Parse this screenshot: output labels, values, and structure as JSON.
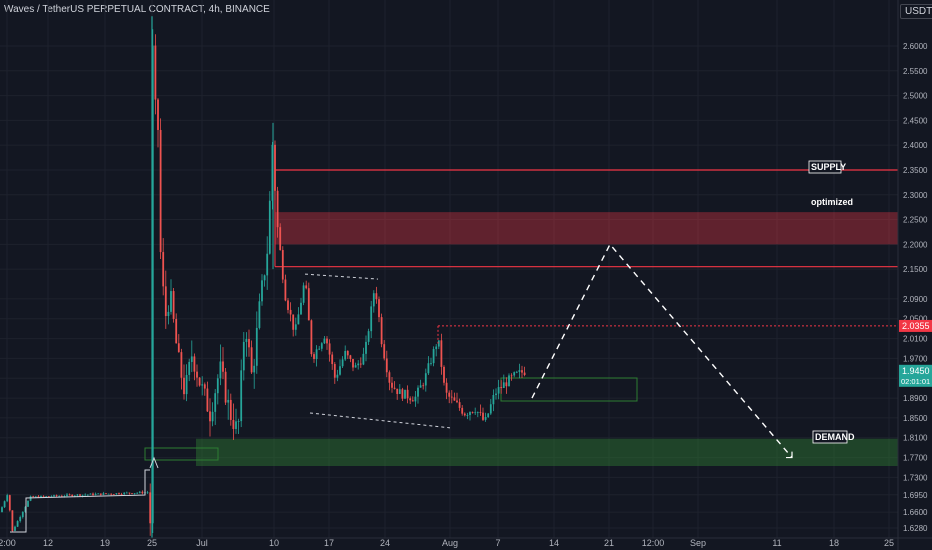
{
  "header": {
    "title": "Waves / TetherUS PERPETUAL CONTRACT, 4h, BINANCE",
    "currency": "USDT"
  },
  "colors": {
    "background": "#131722",
    "grid": "#1e222d",
    "up": "#26a69a",
    "down": "#ef5350",
    "supply": "#f23645",
    "demand": "#2e7d32",
    "text": "#b2b5be"
  },
  "chart_data": {
    "type": "candlestick",
    "symbol": "WAVESUSDT",
    "timeframe": "4h",
    "y_ticks": [
      "2.6000",
      "2.5500",
      "2.5000",
      "2.4500",
      "2.4000",
      "2.3500",
      "2.3000",
      "2.2500",
      "2.2000",
      "2.1500",
      "2.0900",
      "2.0500",
      "2.0100",
      "1.9700",
      "1.9300",
      "1.8900",
      "1.8500",
      "1.8100",
      "1.7700",
      "1.7300",
      "1.6950",
      "1.6600",
      "1.6280"
    ],
    "x_ticks": [
      "2:00",
      "12",
      "19",
      "25",
      "Jul",
      "10",
      "17",
      "24",
      "Aug",
      "7",
      "14",
      "21",
      "12:00",
      "Sep",
      "11",
      "18",
      "25"
    ],
    "ylim": [
      1.615,
      2.655
    ],
    "price_path": [
      [
        0,
        1.66
      ],
      [
        8,
        1.7
      ],
      [
        12,
        1.62
      ],
      [
        30,
        1.69
      ],
      [
        80,
        1.695
      ],
      [
        148,
        1.7
      ],
      [
        151,
        1.62
      ],
      [
        152,
        2.3
      ],
      [
        153,
        2.66
      ],
      [
        154,
        2.4
      ],
      [
        157,
        2.55
      ],
      [
        160,
        2.2
      ],
      [
        165,
        2.05
      ],
      [
        170,
        2.1
      ],
      [
        178,
        1.97
      ],
      [
        185,
        1.9
      ],
      [
        192,
        1.98
      ],
      [
        200,
        1.92
      ],
      [
        210,
        1.86
      ],
      [
        220,
        1.95
      ],
      [
        230,
        1.86
      ],
      [
        238,
        1.82
      ],
      [
        245,
        2.05
      ],
      [
        252,
        1.93
      ],
      [
        260,
        2.08
      ],
      [
        268,
        2.2
      ],
      [
        273,
        2.43
      ],
      [
        276,
        2.26
      ],
      [
        285,
        2.1
      ],
      [
        295,
        2.02
      ],
      [
        305,
        2.13
      ],
      [
        312,
        1.97
      ],
      [
        325,
        2.02
      ],
      [
        335,
        1.93
      ],
      [
        345,
        1.98
      ],
      [
        355,
        1.95
      ],
      [
        365,
        1.98
      ],
      [
        375,
        2.12
      ],
      [
        382,
        2.0
      ],
      [
        390,
        1.92
      ],
      [
        400,
        1.9
      ],
      [
        415,
        1.89
      ],
      [
        425,
        1.93
      ],
      [
        438,
        2.01
      ],
      [
        445,
        1.9
      ],
      [
        455,
        1.88
      ],
      [
        465,
        1.86
      ],
      [
        475,
        1.87
      ],
      [
        485,
        1.84
      ],
      [
        495,
        1.9
      ],
      [
        505,
        1.92
      ],
      [
        515,
        1.935
      ],
      [
        525,
        1.945
      ]
    ],
    "zones": [
      {
        "name": "SUPPLY",
        "top": 2.35,
        "bottom": 2.155,
        "fill": false,
        "color": "#f23645"
      },
      {
        "name": "optimized",
        "top": 2.265,
        "bottom": 2.2,
        "fill": true,
        "color": "#f23645"
      },
      {
        "name": "DEMAND",
        "top": 1.808,
        "bottom": 1.753,
        "fill": true,
        "color": "#2e7d32"
      }
    ],
    "labels": {
      "supply": "SUPPLY",
      "optimized": "optimized",
      "demand": "DEMAND"
    },
    "resistance_level": 2.0355,
    "price_tags": [
      {
        "value": "2.0355",
        "color": "#f23645"
      },
      {
        "value": "1.9450",
        "sub": "02:01:01",
        "color": "#26a69a"
      }
    ],
    "projection": [
      [
        532,
        1.89
      ],
      [
        610,
        2.2
      ],
      [
        792,
        1.77
      ]
    ],
    "dashed_channel": {
      "top": [
        [
          305,
          2.14
        ],
        [
          378,
          2.13
        ]
      ],
      "bottom": [
        [
          310,
          1.86
        ],
        [
          450,
          1.83
        ]
      ]
    }
  }
}
